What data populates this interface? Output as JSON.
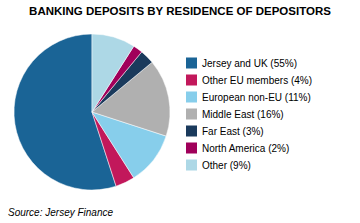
{
  "chart_data": {
    "type": "pie",
    "title": "BANKING DEPOSITS BY RESIDENCE OF DEPOSITORS",
    "annotations": [
      "Source: Jersey Finance"
    ],
    "categories": [
      "Jersey and UK (55%)",
      "Other EU members (4%)",
      "European non-EU (11%)",
      "Middle East (16%)",
      "Far East (3%)",
      "North America (2%)",
      "Other (9%)"
    ],
    "values": [
      55,
      4,
      11,
      16,
      3,
      2,
      9
    ],
    "colors": [
      "#1a6496",
      "#c2185b",
      "#87ceeb",
      "#b0b0b0",
      "#1a3a5c",
      "#a0005a",
      "#add8e6"
    ],
    "legend": "right"
  }
}
